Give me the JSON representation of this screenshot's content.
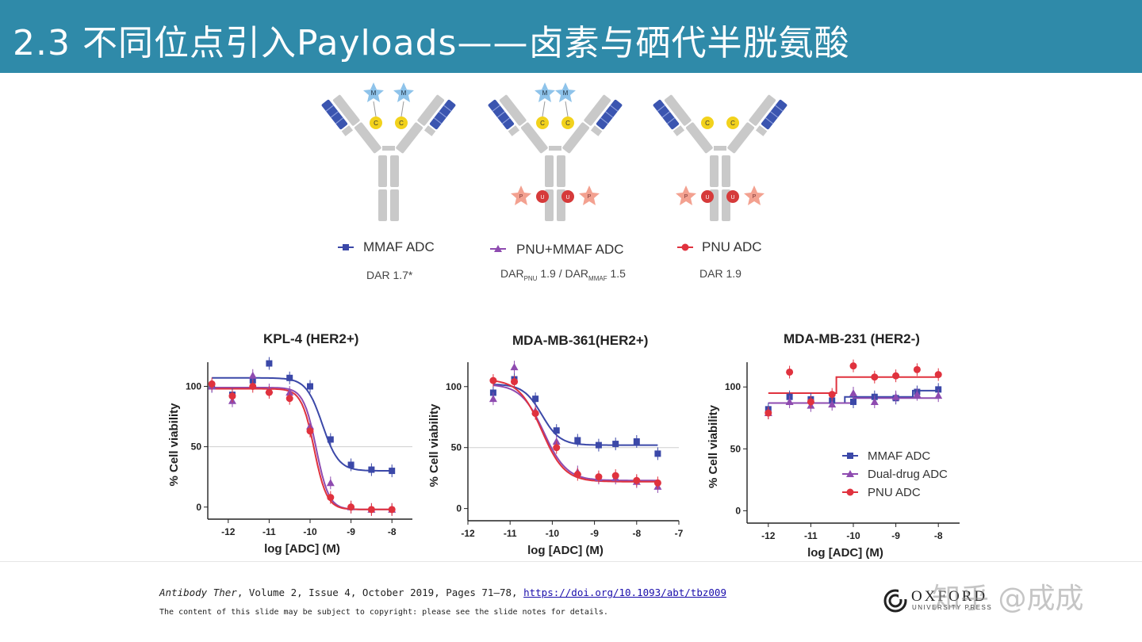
{
  "slide": {
    "title": "2.3 不同位点引入Payloads——卤素与硒代半胱氨酸"
  },
  "antibodies": [
    {
      "legend": "MMAF ADC",
      "dar": "DAR 1.7*",
      "color": "#3b48a8",
      "marker": "square"
    },
    {
      "legend": "PNU+MMAF ADC",
      "dar_prefix": "DAR",
      "dar_sub1": "PNU",
      "dar_mid": " 1.9 / DAR",
      "dar_sub2": "MMAF",
      "dar_suffix": " 1.5",
      "color": "#8e4bb0",
      "marker": "triangle"
    },
    {
      "legend": "PNU ADC",
      "dar": "DAR 1.9",
      "color": "#e0323e",
      "marker": "circle"
    }
  ],
  "antibody_glyphs": {
    "mmaf": "M",
    "cys": "C",
    "pnu": "P",
    "sec": "U"
  },
  "chart_data": [
    {
      "type": "line",
      "title": "KPL-4 (HER2+)",
      "xlabel": "log [ADC] (M)",
      "ylabel": "% Cell viability",
      "xlim": [
        -12.5,
        -7.5
      ],
      "ylim": [
        -10,
        120
      ],
      "xticks": [
        -12,
        -11,
        -10,
        -9,
        -8
      ],
      "yticks": [
        0,
        50,
        100
      ],
      "reference_line": 50,
      "series": [
        {
          "name": "MMAF ADC",
          "color": "#3b48a8",
          "marker": "square",
          "x": [
            -12.4,
            -11.9,
            -11.4,
            -11.0,
            -10.5,
            -10.0,
            -9.5,
            -9.0,
            -8.5,
            -8.0
          ],
          "y": [
            100,
            93,
            105,
            119,
            107,
            100,
            56,
            35,
            31,
            30
          ]
        },
        {
          "name": "Dual-drug ADC",
          "color": "#8e4bb0",
          "marker": "triangle",
          "x": [
            -12.4,
            -11.9,
            -11.4,
            -11.0,
            -10.5,
            -10.0,
            -9.5,
            -9.0,
            -8.5,
            -8.0
          ],
          "y": [
            100,
            88,
            109,
            97,
            95,
            67,
            20,
            0,
            -2,
            -2
          ]
        },
        {
          "name": "PNU ADC",
          "color": "#e0323e",
          "marker": "circle",
          "x": [
            -12.4,
            -11.9,
            -11.4,
            -11.0,
            -10.5,
            -10.0,
            -9.5,
            -9.0,
            -8.5,
            -8.0
          ],
          "y": [
            102,
            92,
            100,
            95,
            90,
            63,
            8,
            0,
            -2,
            -2
          ]
        }
      ],
      "fits": [
        {
          "color": "#3b48a8",
          "top": 107,
          "bottom": 30,
          "ec50": -9.7,
          "hill": 2.2
        },
        {
          "color": "#8e4bb0",
          "top": 99,
          "bottom": -2,
          "ec50": -9.85,
          "hill": 2.8
        },
        {
          "color": "#e0323e",
          "top": 98,
          "bottom": -2,
          "ec50": -9.9,
          "hill": 2.8
        }
      ]
    },
    {
      "type": "line",
      "title": "MDA-MB-361(HER2+)",
      "xlabel": "log [ADC] (M)",
      "ylabel": "% Cell viability",
      "xlim": [
        -12,
        -7
      ],
      "ylim": [
        -10,
        120
      ],
      "xticks": [
        -12,
        -11,
        -10,
        -9,
        -8,
        -7
      ],
      "yticks": [
        0,
        50,
        100
      ],
      "reference_line": 50,
      "series": [
        {
          "name": "MMAF ADC",
          "color": "#3b48a8",
          "marker": "square",
          "x": [
            -11.4,
            -10.9,
            -10.4,
            -9.9,
            -9.4,
            -8.9,
            -8.5,
            -8.0,
            -7.5
          ],
          "y": [
            95,
            106,
            90,
            64,
            56,
            52,
            53,
            55,
            45
          ]
        },
        {
          "name": "Dual-drug ADC",
          "color": "#8e4bb0",
          "marker": "triangle",
          "x": [
            -11.4,
            -10.9,
            -10.4,
            -9.9,
            -9.4,
            -8.9,
            -8.5,
            -8.0,
            -7.5
          ],
          "y": [
            90,
            116,
            80,
            55,
            30,
            25,
            25,
            22,
            18
          ]
        },
        {
          "name": "PNU ADC",
          "color": "#e0323e",
          "marker": "circle",
          "x": [
            -11.4,
            -10.9,
            -10.4,
            -9.9,
            -9.4,
            -8.9,
            -8.5,
            -8.0,
            -7.5
          ],
          "y": [
            105,
            104,
            78,
            50,
            28,
            26,
            27,
            23,
            21
          ]
        }
      ],
      "fits": [
        {
          "color": "#3b48a8",
          "top": 102,
          "bottom": 52,
          "ec50": -10.25,
          "hill": 2.0
        },
        {
          "color": "#8e4bb0",
          "top": 102,
          "bottom": 23,
          "ec50": -10.2,
          "hill": 1.6
        },
        {
          "color": "#e0323e",
          "top": 106,
          "bottom": 22,
          "ec50": -10.25,
          "hill": 1.6
        }
      ]
    },
    {
      "type": "line",
      "title": "MDA-MB-231 (HER2-)",
      "xlabel": "log [ADC] (M)",
      "ylabel": "% Cell viability",
      "xlim": [
        -12.5,
        -7.5
      ],
      "ylim": [
        -10,
        120
      ],
      "xticks": [
        -12,
        -11,
        -10,
        -9,
        -8
      ],
      "yticks": [
        0,
        50,
        100
      ],
      "legend_position": "bottom-right",
      "legend": [
        "MMAF ADC",
        "Dual-drug ADC",
        "PNU ADC"
      ],
      "series": [
        {
          "name": "MMAF ADC",
          "color": "#3b48a8",
          "marker": "square",
          "x": [
            -12.0,
            -11.5,
            -11.0,
            -10.5,
            -10.0,
            -9.5,
            -9.0,
            -8.5,
            -8.0
          ],
          "y": [
            82,
            92,
            90,
            89,
            88,
            92,
            91,
            96,
            98
          ]
        },
        {
          "name": "Dual-drug ADC",
          "color": "#8e4bb0",
          "marker": "triangle",
          "x": [
            -12.0,
            -11.5,
            -11.0,
            -10.5,
            -10.0,
            -9.5,
            -9.0,
            -8.5,
            -8.0
          ],
          "y": [
            79,
            88,
            85,
            86,
            95,
            88,
            92,
            94,
            93
          ]
        },
        {
          "name": "PNU ADC",
          "color": "#e0323e",
          "marker": "circle",
          "x": [
            -12.0,
            -11.5,
            -11.0,
            -10.5,
            -10.0,
            -9.5,
            -9.0,
            -8.5,
            -8.0
          ],
          "y": [
            79,
            112,
            88,
            94,
            117,
            108,
            109,
            114,
            110
          ]
        }
      ],
      "fits": [
        {
          "color": "#3b48a8",
          "steps": [
            [
              -12.0,
              87
            ],
            [
              -10.2,
              87
            ],
            [
              -10.2,
              92
            ],
            [
              -8.6,
              92
            ],
            [
              -8.6,
              97
            ],
            [
              -8.0,
              97
            ]
          ]
        },
        {
          "color": "#8e4bb0",
          "steps": [
            [
              -12.0,
              87
            ],
            [
              -10.0,
              87
            ],
            [
              -10.0,
              91
            ],
            [
              -8.0,
              91
            ]
          ]
        },
        {
          "color": "#e0323e",
          "steps": [
            [
              -12.0,
              95
            ],
            [
              -10.4,
              95
            ],
            [
              -10.4,
              108
            ],
            [
              -8.0,
              108
            ]
          ]
        }
      ]
    }
  ],
  "footer": {
    "journal": "Antibody Ther",
    "citation": ", Volume 2, Issue 4, October 2019, Pages 71–78,",
    "doi": "https://doi.org/10.1093/abt/tbz009",
    "copyright": "The content of this slide may be subject to copyright: please see the slide notes for details.",
    "publisher": "OXFORD",
    "publisher_sub": "UNIVERSITY PRESS",
    "watermark": "知乎 @成成"
  }
}
